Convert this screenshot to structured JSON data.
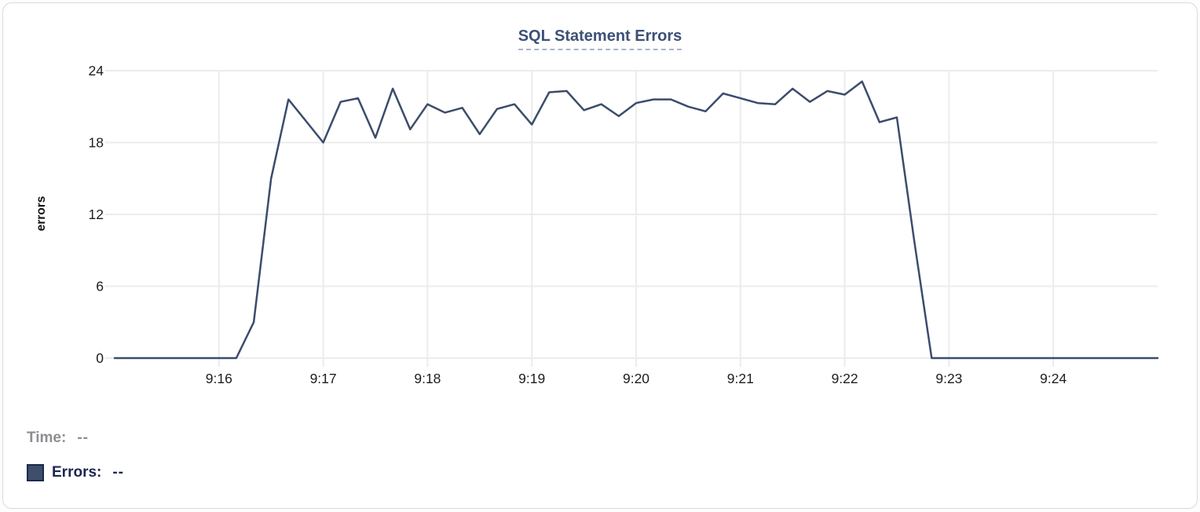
{
  "card": {
    "title": "SQL Statement Errors"
  },
  "tooltip": {
    "time_label": "Time:",
    "time_value": "--",
    "errors_label": "Errors:",
    "errors_value": "--"
  },
  "colors": {
    "line": "#3c4c6c",
    "title": "#3d5176",
    "dashed_underline": "#a9b5d1",
    "grid": "#ececec",
    "legend_swatch": "#3e4e6b",
    "legend_swatch_border": "#1b2a4e",
    "time_text": "#8e8e93",
    "errors_text": "#1c2650"
  },
  "chart_data": {
    "type": "line",
    "title": "SQL Statement Errors",
    "xlabel": "",
    "ylabel": "errors",
    "ylim": [
      0,
      24
    ],
    "yticks": [
      0,
      6,
      12,
      18,
      24
    ],
    "x_domain": [
      "9:15:00",
      "9:25:00"
    ],
    "xticks": [
      "9:16",
      "9:17",
      "9:18",
      "9:19",
      "9:20",
      "9:21",
      "9:22",
      "9:23",
      "9:24"
    ],
    "grid": true,
    "legend_position": "bottom-left",
    "series": [
      {
        "name": "Errors",
        "color": "#3c4c6c",
        "points": [
          [
            "9:15:00",
            0
          ],
          [
            "9:15:10",
            0
          ],
          [
            "9:15:20",
            0
          ],
          [
            "9:15:30",
            0
          ],
          [
            "9:15:40",
            0
          ],
          [
            "9:15:50",
            0
          ],
          [
            "9:16:00",
            0
          ],
          [
            "9:16:10",
            0
          ],
          [
            "9:16:20",
            3
          ],
          [
            "9:16:30",
            15
          ],
          [
            "9:16:40",
            21.6
          ],
          [
            "9:16:50",
            19.8
          ],
          [
            "9:17:00",
            18
          ],
          [
            "9:17:10",
            21.4
          ],
          [
            "9:17:20",
            21.7
          ],
          [
            "9:17:30",
            18.4
          ],
          [
            "9:17:40",
            22.5
          ],
          [
            "9:17:50",
            19.1
          ],
          [
            "9:18:00",
            21.2
          ],
          [
            "9:18:10",
            20.5
          ],
          [
            "9:18:20",
            20.9
          ],
          [
            "9:18:30",
            18.7
          ],
          [
            "9:18:40",
            20.8
          ],
          [
            "9:18:50",
            21.2
          ],
          [
            "9:19:00",
            19.5
          ],
          [
            "9:19:10",
            22.2
          ],
          [
            "9:19:20",
            22.3
          ],
          [
            "9:19:30",
            20.7
          ],
          [
            "9:19:40",
            21.2
          ],
          [
            "9:19:50",
            20.2
          ],
          [
            "9:20:00",
            21.3
          ],
          [
            "9:20:10",
            21.6
          ],
          [
            "9:20:20",
            21.6
          ],
          [
            "9:20:30",
            21.0
          ],
          [
            "9:20:40",
            20.6
          ],
          [
            "9:20:50",
            22.1
          ],
          [
            "9:21:00",
            21.7
          ],
          [
            "9:21:10",
            21.3
          ],
          [
            "9:21:20",
            21.2
          ],
          [
            "9:21:30",
            22.5
          ],
          [
            "9:21:40",
            21.4
          ],
          [
            "9:21:50",
            22.3
          ],
          [
            "9:22:00",
            22.0
          ],
          [
            "9:22:10",
            23.1
          ],
          [
            "9:22:20",
            19.7
          ],
          [
            "9:22:30",
            20.1
          ],
          [
            "9:22:40",
            9.8
          ],
          [
            "9:22:50",
            0
          ],
          [
            "9:23:00",
            0
          ],
          [
            "9:23:10",
            0
          ],
          [
            "9:23:20",
            0
          ],
          [
            "9:23:30",
            0
          ],
          [
            "9:23:40",
            0
          ],
          [
            "9:23:50",
            0
          ],
          [
            "9:24:00",
            0
          ],
          [
            "9:24:10",
            0
          ],
          [
            "9:24:20",
            0
          ],
          [
            "9:24:30",
            0
          ],
          [
            "9:24:40",
            0
          ],
          [
            "9:24:50",
            0
          ],
          [
            "9:25:00",
            0
          ]
        ]
      }
    ]
  }
}
